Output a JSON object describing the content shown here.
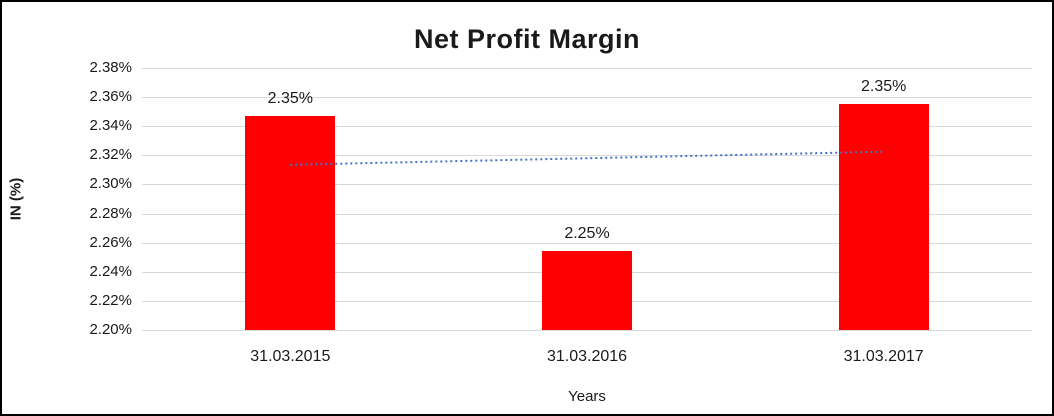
{
  "chart_data": {
    "type": "bar",
    "title": "Net Profit Margin",
    "xlabel": "Years",
    "ylabel": "IN (%)",
    "categories": [
      "31.03.2015",
      "31.03.2016",
      "31.03.2017"
    ],
    "values": [
      2.347,
      2.254,
      2.355
    ],
    "value_labels": [
      "2.35%",
      "2.25%",
      "2.35%"
    ],
    "ylim": [
      2.2,
      2.38
    ],
    "ytick_step": 0.02,
    "ytick_suffix": "%",
    "bar_color": "#ff0000",
    "grid": true,
    "gridline_color": "#d9d9d9",
    "legend": "none",
    "trendline": {
      "style": "dotted",
      "color": "#4472c4",
      "start_value": 2.3135,
      "end_value": 2.3225
    }
  }
}
